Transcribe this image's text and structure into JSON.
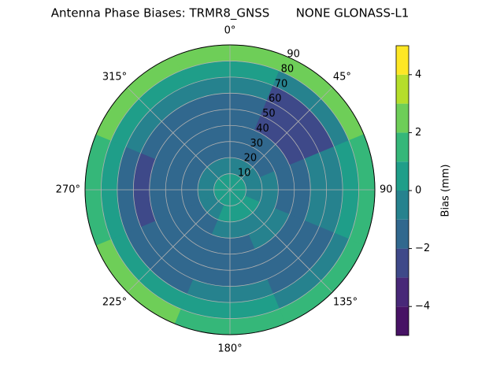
{
  "chart_data": {
    "type": "polar-contour",
    "title": "Antenna Phase Biases: TRMR8_GNSS       NONE GLONASS-L1",
    "azimuth": [
      0,
      45,
      90,
      135,
      180,
      225,
      270,
      315
    ],
    "zenith": [
      5,
      15,
      25,
      35,
      45,
      55,
      65,
      75,
      85
    ],
    "z": [
      [
        0.5,
        0.5,
        0.5,
        0.5,
        0.5,
        0.5,
        0.5,
        0.5
      ],
      [
        -0.5,
        -0.5,
        -0.5,
        0.5,
        0.5,
        -0.5,
        -0.5,
        -0.5
      ],
      [
        -1.5,
        -1.5,
        -0.5,
        -0.5,
        -0.5,
        -1.5,
        -1.5,
        -1.5
      ],
      [
        -1.5,
        -1.5,
        -1.5,
        -0.5,
        -1.5,
        -1.5,
        -1.5,
        -1.5
      ],
      [
        -1.5,
        -2.5,
        -1.5,
        -1.5,
        -1.5,
        -1.5,
        -1.5,
        -1.5
      ],
      [
        -1.5,
        -2.5,
        -0.5,
        -1.5,
        -1.5,
        -1.5,
        -2.5,
        -1.5
      ],
      [
        -0.5,
        -2.5,
        -0.5,
        -1.5,
        -0.5,
        -1.5,
        -1.5,
        -0.5
      ],
      [
        0.5,
        -0.5,
        0.5,
        -0.5,
        0.5,
        0.5,
        0.5,
        0.5
      ],
      [
        2.5,
        2.5,
        1.5,
        1.5,
        1.5,
        2.5,
        1.5,
        2.5
      ]
    ],
    "rlim": [
      0,
      90
    ],
    "rticks": [
      10,
      20,
      30,
      40,
      50,
      60,
      70,
      80,
      90
    ],
    "thetaticks": [
      {
        "value": 0,
        "label": "0°"
      },
      {
        "value": 45,
        "label": "45°"
      },
      {
        "value": 90,
        "label": "90"
      },
      {
        "value": 135,
        "label": "135°"
      },
      {
        "value": 180,
        "label": "180°"
      },
      {
        "value": 225,
        "label": "225°"
      },
      {
        "value": 270,
        "label": "270°"
      },
      {
        "value": 315,
        "label": "315°"
      }
    ],
    "levels": [
      -5,
      -4,
      -3,
      -2,
      -1,
      0,
      1,
      2,
      3,
      4,
      5
    ],
    "colors": [
      "#471365",
      "#482878",
      "#3e4989",
      "#31688e",
      "#26828e",
      "#1f9e89",
      "#35b779",
      "#6ece58",
      "#b5de2b",
      "#fde725"
    ],
    "colorbar_label": "Bias (mm)",
    "colorbar_ticks": [
      {
        "value": -4,
        "label": "−4"
      },
      {
        "value": -2,
        "label": "−2"
      },
      {
        "value": 0,
        "label": "0"
      },
      {
        "value": 2,
        "label": "2"
      },
      {
        "value": 4,
        "label": "4"
      }
    ],
    "grid": true
  }
}
